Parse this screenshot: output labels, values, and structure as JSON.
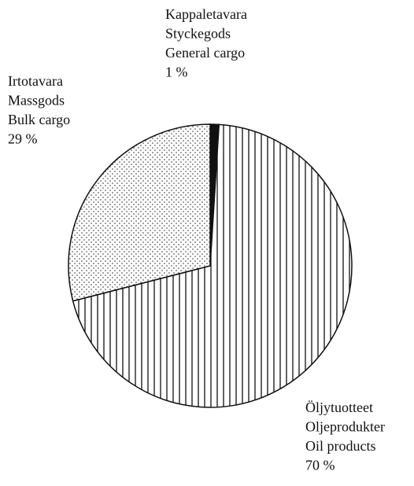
{
  "chart_data": {
    "type": "pie",
    "categories": [
      [
        "Kappaletavara",
        "Styckegods",
        "General cargo"
      ],
      [
        "Öljytuotteet",
        "Oljeprodukter",
        "Oil products"
      ],
      [
        "Irtotavara",
        "Massgods",
        "Bulk cargo"
      ]
    ],
    "values": [
      1,
      70,
      29
    ],
    "value_labels": [
      "1 %",
      "70 %",
      "29 %"
    ],
    "patterns": [
      "solid",
      "vertical-lines",
      "dots"
    ],
    "color": "#111111"
  }
}
